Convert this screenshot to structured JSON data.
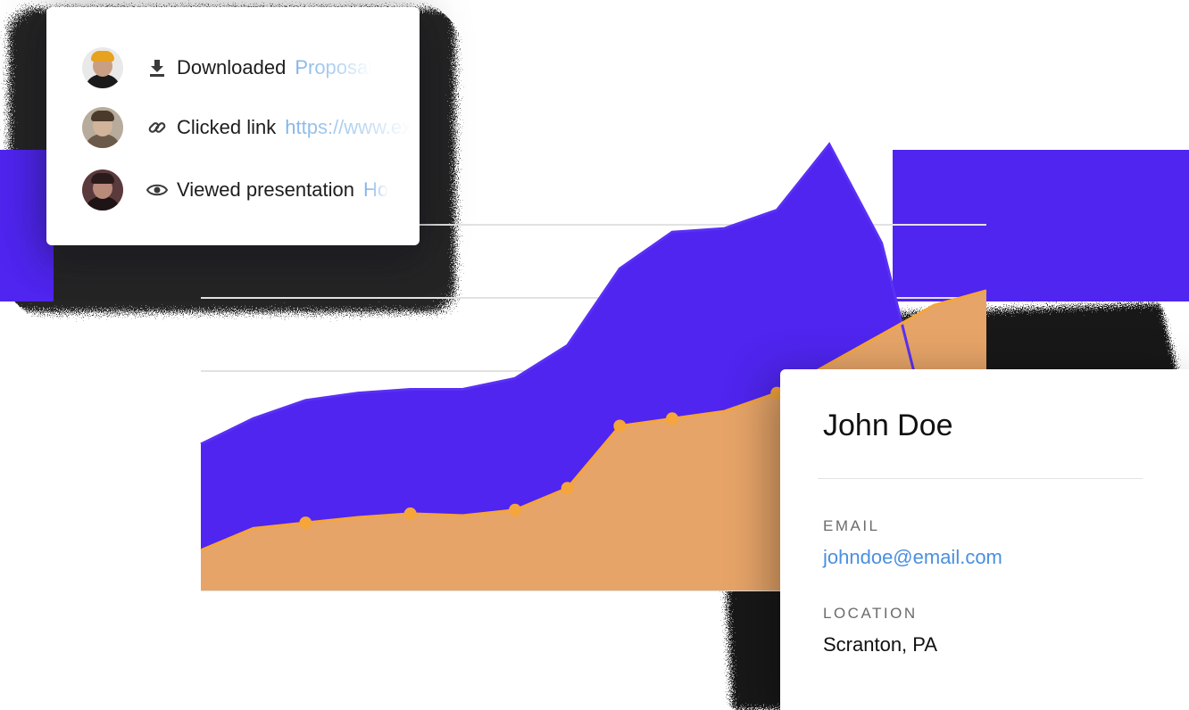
{
  "activity": [
    {
      "avatar": "avatar-yellow-beanie",
      "icon": "download-icon",
      "action": "Downloaded",
      "target": "Proposal"
    },
    {
      "avatar": "avatar-man-outdoor",
      "icon": "link-icon",
      "action": "Clicked link",
      "target": "https://www.ex"
    },
    {
      "avatar": "avatar-woman-dark",
      "icon": "eye-icon",
      "action": "Viewed presentation",
      "target": "Ho"
    }
  ],
  "contact": {
    "name": "John Doe",
    "email_label": "EMAIL",
    "email": "johndoe@email.com",
    "location_label": "LOCATION",
    "location": "Scranton, PA"
  },
  "colors": {
    "purple_series": "#4f25ef",
    "orange_series": "#e6a468",
    "orange_line": "#f5a53a",
    "link": "#4a8fe0"
  },
  "chart_data": {
    "type": "area",
    "x": [
      0,
      1,
      2,
      3,
      4,
      5,
      6,
      7,
      8,
      9,
      10,
      11,
      12,
      13,
      14,
      15
    ],
    "series": [
      {
        "values": [
          40,
          47,
          52,
          54,
          55,
          55,
          58,
          67,
          88,
          98,
          99,
          104,
          122,
          95,
          38,
          33
        ]
      },
      {
        "values": [
          11,
          17,
          18.5,
          20,
          21,
          20.5,
          22,
          28,
          45,
          47,
          49,
          54,
          62,
          70,
          78,
          82
        ]
      }
    ],
    "ylim": [
      0,
      120
    ],
    "grid": true
  }
}
